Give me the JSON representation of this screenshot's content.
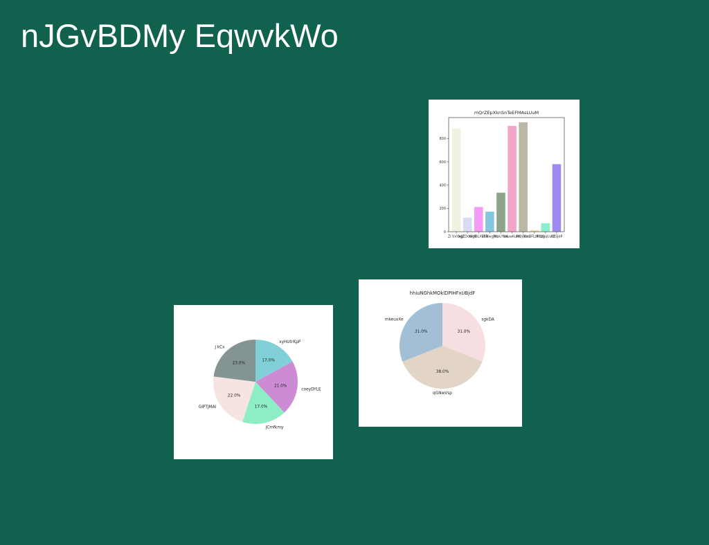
{
  "page": {
    "title": "nJGvBDMy EqwvkWo",
    "background": "#11614f"
  },
  "chart_data": [
    {
      "type": "bar",
      "title": "mQrZEpXknSnTeEFMAsLUuM",
      "xlabel": "",
      "ylabel": "",
      "ylim": [
        0,
        980
      ],
      "yticks": [
        0,
        200,
        400,
        600,
        800
      ],
      "categories": [
        "ZI VxYxgZ",
        "IkjJLDdelgB",
        "WUDLXEhB",
        "vBMwgNu",
        "jWaUYbw",
        "bKuwKuPb",
        "lVOjBoss",
        "KnOFLUkQG",
        "fPhzgqUutZ",
        "XRSJeP"
      ],
      "values": [
        886,
        120,
        212,
        172,
        335,
        908,
        940,
        13,
        72,
        580
      ],
      "colors": [
        "#f0f2e1",
        "#d8dcf2",
        "#f59af5",
        "#86c6e2",
        "#8da38a",
        "#f4a4c6",
        "#bbb8a8",
        "#eee0a6",
        "#8aefcd",
        "#9f8af2"
      ]
    },
    {
      "type": "pie",
      "title": "",
      "labels": [
        "xyHUtrKpP",
        "coeyDYLE",
        "jCmfkmy",
        "GIPTJMAI",
        "j kCx"
      ],
      "values": [
        17.0,
        21.0,
        17.0,
        22.0,
        23.0
      ],
      "pct_labels": [
        "17.0%",
        "21.0%",
        "17.0%",
        "22.0%",
        "23.0%"
      ],
      "colors": [
        "#82d0d7",
        "#cc8bd3",
        "#8deec6",
        "#f6e4e2",
        "#839492"
      ]
    },
    {
      "type": "pie",
      "title": "hhiuNGhkMOklDPIHFxUBjdF",
      "labels": [
        "sgkDA",
        "qGNwVsp",
        "mkeuxXe"
      ],
      "values": [
        31.0,
        38.0,
        31.0
      ],
      "pct_labels": [
        "31.0%",
        "38.0%",
        "31.0%"
      ],
      "colors": [
        "#f7dee1",
        "#e2d5c6",
        "#a2bfd6"
      ]
    }
  ]
}
